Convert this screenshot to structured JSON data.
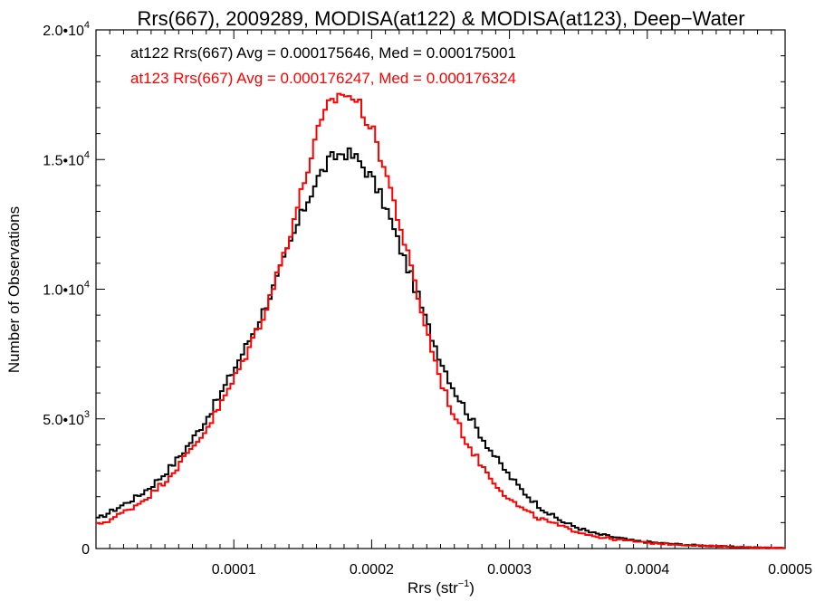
{
  "chart_data": {
    "type": "line",
    "title": "Rrs(667), 2009289, MODISA(at122) & MODISA(at123), Deep−Water",
    "xlabel": "Rrs (str",
    "xlabel_sup": "−1",
    "xlabel_close": ")",
    "ylabel": "Number of Observations",
    "xlim": [
      0.0,
      0.0005
    ],
    "ylim": [
      0,
      20000
    ],
    "x_ticks": [
      {
        "value": 0.0001,
        "label": "0.0001"
      },
      {
        "value": 0.0002,
        "label": "0.0002"
      },
      {
        "value": 0.0003,
        "label": "0.0003"
      },
      {
        "value": 0.0004,
        "label": "0.0004"
      },
      {
        "value": 0.0005,
        "label": "0.0005"
      }
    ],
    "y_ticks": [
      {
        "value": 0,
        "mant": "0",
        "exp": ""
      },
      {
        "value": 5000,
        "mant": "5.0•10",
        "exp": "3"
      },
      {
        "value": 10000,
        "mant": "1.0•10",
        "exp": "4"
      },
      {
        "value": 15000,
        "mant": "1.5•10",
        "exp": "4"
      },
      {
        "value": 20000,
        "mant": "2.0•10",
        "exp": "4"
      }
    ],
    "annotations": [
      "at122 Rrs(667) Avg = 0.000175646, Med = 0.000175001",
      "at123 Rrs(667) Avg = 0.000176247, Med = 0.000176324"
    ],
    "grid": false,
    "series": [
      {
        "label": "at122",
        "color": "#000000",
        "x": [
          0.0,
          1e-05,
          2e-05,
          3e-05,
          4e-05,
          5e-05,
          6e-05,
          7e-05,
          8e-05,
          9e-05,
          0.0001,
          0.00011,
          0.00012,
          0.00013,
          0.00014,
          0.00015,
          0.00016,
          0.00017,
          0.00018,
          0.00019,
          0.0002,
          0.00021,
          0.00022,
          0.00023,
          0.00024,
          0.00025,
          0.00026,
          0.00027,
          0.00028,
          0.00029,
          0.0003,
          0.00031,
          0.00032,
          0.00033,
          0.00034,
          0.00035,
          0.00036,
          0.00037,
          0.00038,
          0.00039,
          0.0004,
          0.00042,
          0.00044,
          0.00046,
          0.00048,
          0.0005
        ],
        "y": [
          1100,
          1400,
          1700,
          2000,
          2400,
          2900,
          3500,
          4200,
          5000,
          5900,
          6900,
          7900,
          9000,
          10200,
          11600,
          13000,
          14200,
          15000,
          15300,
          15000,
          14300,
          13200,
          11700,
          10300,
          8700,
          7300,
          6100,
          5200,
          4300,
          3500,
          2800,
          2200,
          1700,
          1300,
          1000,
          800,
          600,
          500,
          400,
          300,
          250,
          170,
          110,
          70,
          40,
          20
        ]
      },
      {
        "label": "at123",
        "color": "#ff0000",
        "x": [
          0.0,
          1e-05,
          2e-05,
          3e-05,
          4e-05,
          5e-05,
          6e-05,
          7e-05,
          8e-05,
          9e-05,
          0.0001,
          0.00011,
          0.00012,
          0.00013,
          0.00014,
          0.00015,
          0.00016,
          0.00017,
          0.00018,
          0.00019,
          0.0002,
          0.00021,
          0.00022,
          0.00023,
          0.00024,
          0.00025,
          0.00026,
          0.00027,
          0.00028,
          0.00029,
          0.0003,
          0.00031,
          0.00032,
          0.00033,
          0.00034,
          0.00035,
          0.00036,
          0.00037,
          0.00038,
          0.00039,
          0.0004,
          0.00042,
          0.00044,
          0.00046,
          0.00048,
          0.0005
        ],
        "y": [
          900,
          1100,
          1400,
          1700,
          2100,
          2600,
          3200,
          3900,
          4600,
          5500,
          6500,
          7600,
          8800,
          10300,
          12000,
          13900,
          15900,
          17200,
          17600,
          17200,
          16200,
          14600,
          12600,
          10500,
          8400,
          6500,
          5100,
          4000,
          3200,
          2500,
          1900,
          1500,
          1200,
          1000,
          800,
          650,
          500,
          400,
          330,
          280,
          220,
          160,
          110,
          70,
          40,
          20
        ]
      }
    ]
  }
}
